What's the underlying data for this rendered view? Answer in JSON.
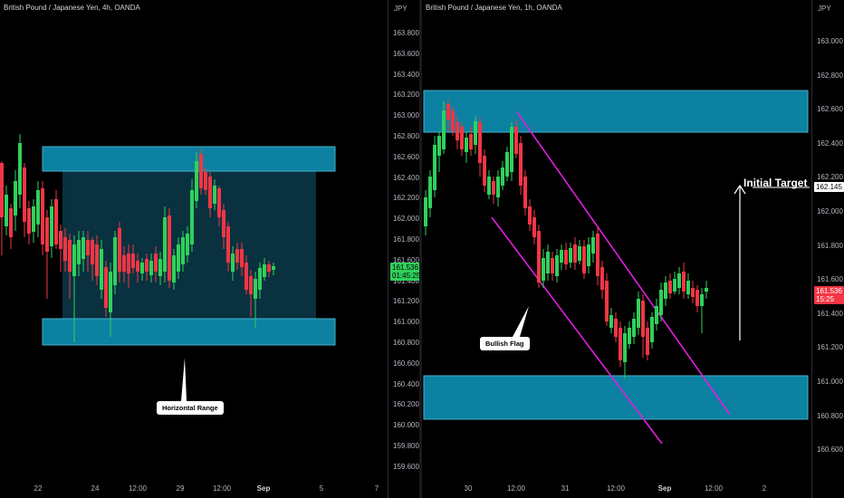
{
  "left_chart": {
    "title": "British Pound / Japanese Yen, 4h, OANDA",
    "unit": "JPY",
    "y_ticks": [
      "163.800",
      "163.600",
      "163.400",
      "163.200",
      "163.000",
      "162.800",
      "162.600",
      "162.400",
      "162.200",
      "162.000",
      "161.800",
      "161.600",
      "161.400",
      "161.200",
      "161.000",
      "160.800",
      "160.600",
      "160.400",
      "160.200",
      "160.000",
      "159.800",
      "159.600"
    ],
    "x_ticks": [
      "22",
      "24",
      "12:00",
      "29",
      "12:00",
      "Sep",
      "5",
      "7"
    ],
    "x_ticks_bold": [
      "Sep"
    ],
    "price_tag": {
      "price": "161.536",
      "countdown": "01:45:25",
      "color": "#2fd15a"
    },
    "callout": "Horizontal Range"
  },
  "right_chart": {
    "title": "British Pound / Japanese Yen, 1h, OANDA",
    "unit": "JPY",
    "y_ticks": [
      "163.000",
      "162.800",
      "162.600",
      "162.400",
      "162.200",
      "162.000",
      "161.800",
      "161.600",
      "161.400",
      "161.200",
      "161.000",
      "160.800",
      "160.600"
    ],
    "x_ticks": [
      "30",
      "12:00",
      "31",
      "12:00",
      "Sep",
      "12:00",
      "2"
    ],
    "x_ticks_bold": [
      "Sep"
    ],
    "price_tag": {
      "price": "161.536",
      "countdown": "15:25",
      "color": "#f23645"
    },
    "target_tag": "162.145",
    "callout": "Bullish Flag",
    "target_label": "Initial Target"
  },
  "colors": {
    "up": "#2fd15a",
    "down": "#f23645",
    "zone": "#0e8fb3",
    "range_fill": "#0a3a4a",
    "flag": "#e020e0"
  }
}
